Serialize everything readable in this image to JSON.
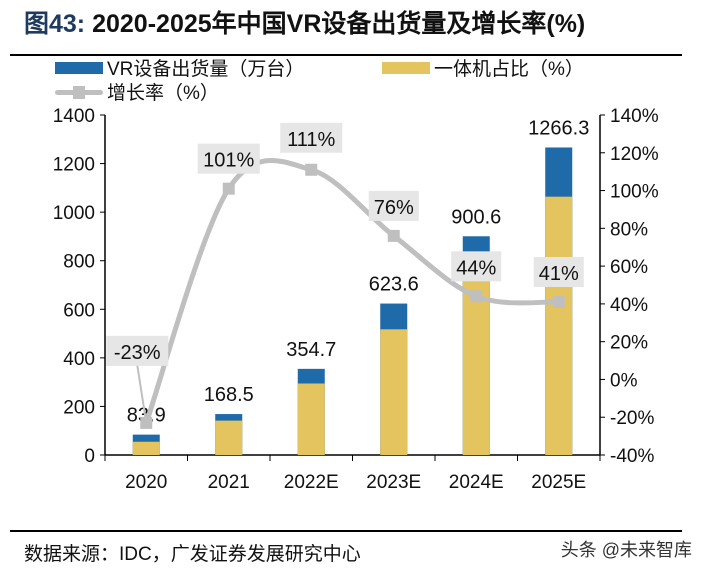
{
  "title": {
    "figure": "图43:",
    "text": "2020-2025年中国VR设备出货量及增长率(%)"
  },
  "source": "数据来源：IDC，广发证券发展研究中心",
  "watermark": "头条 @未来智库",
  "chart_data": {
    "type": "bar",
    "categories": [
      "2020",
      "2021",
      "2022E",
      "2023E",
      "2024E",
      "2025E"
    ],
    "series": [
      {
        "name": "VR设备出货量（万台）",
        "type": "bar",
        "color": "#1f6aa8",
        "values": [
          83.9,
          168.5,
          354.7,
          623.6,
          900.6,
          1266.3
        ],
        "labels": [
          "83.9",
          "168.5",
          "354.7",
          "623.6",
          "900.6",
          "1266.3"
        ]
      },
      {
        "name": "一体机占比（%）",
        "type": "bar",
        "color": "#e3c45e",
        "values": [
          65,
          84,
          83,
          83,
          80,
          84
        ]
      },
      {
        "name": "增长率（%）",
        "type": "line",
        "color": "#bfbfbf",
        "axis": "right",
        "values": [
          -23,
          101,
          111,
          76,
          44,
          41
        ],
        "labels": [
          "-23%",
          "101%",
          "111%",
          "76%",
          "44%",
          "41%"
        ]
      }
    ],
    "left_axis": {
      "ylim": [
        0,
        1400
      ],
      "ticks": [
        "0",
        "200",
        "400",
        "600",
        "800",
        "1000",
        "1200",
        "1400"
      ]
    },
    "right_axis": {
      "ylim": [
        -40,
        140
      ],
      "ticks": [
        "-40%",
        "-20%",
        "0%",
        "20%",
        "40%",
        "60%",
        "80%",
        "100%",
        "120%",
        "140%"
      ]
    },
    "legend": "top",
    "grid": false
  }
}
